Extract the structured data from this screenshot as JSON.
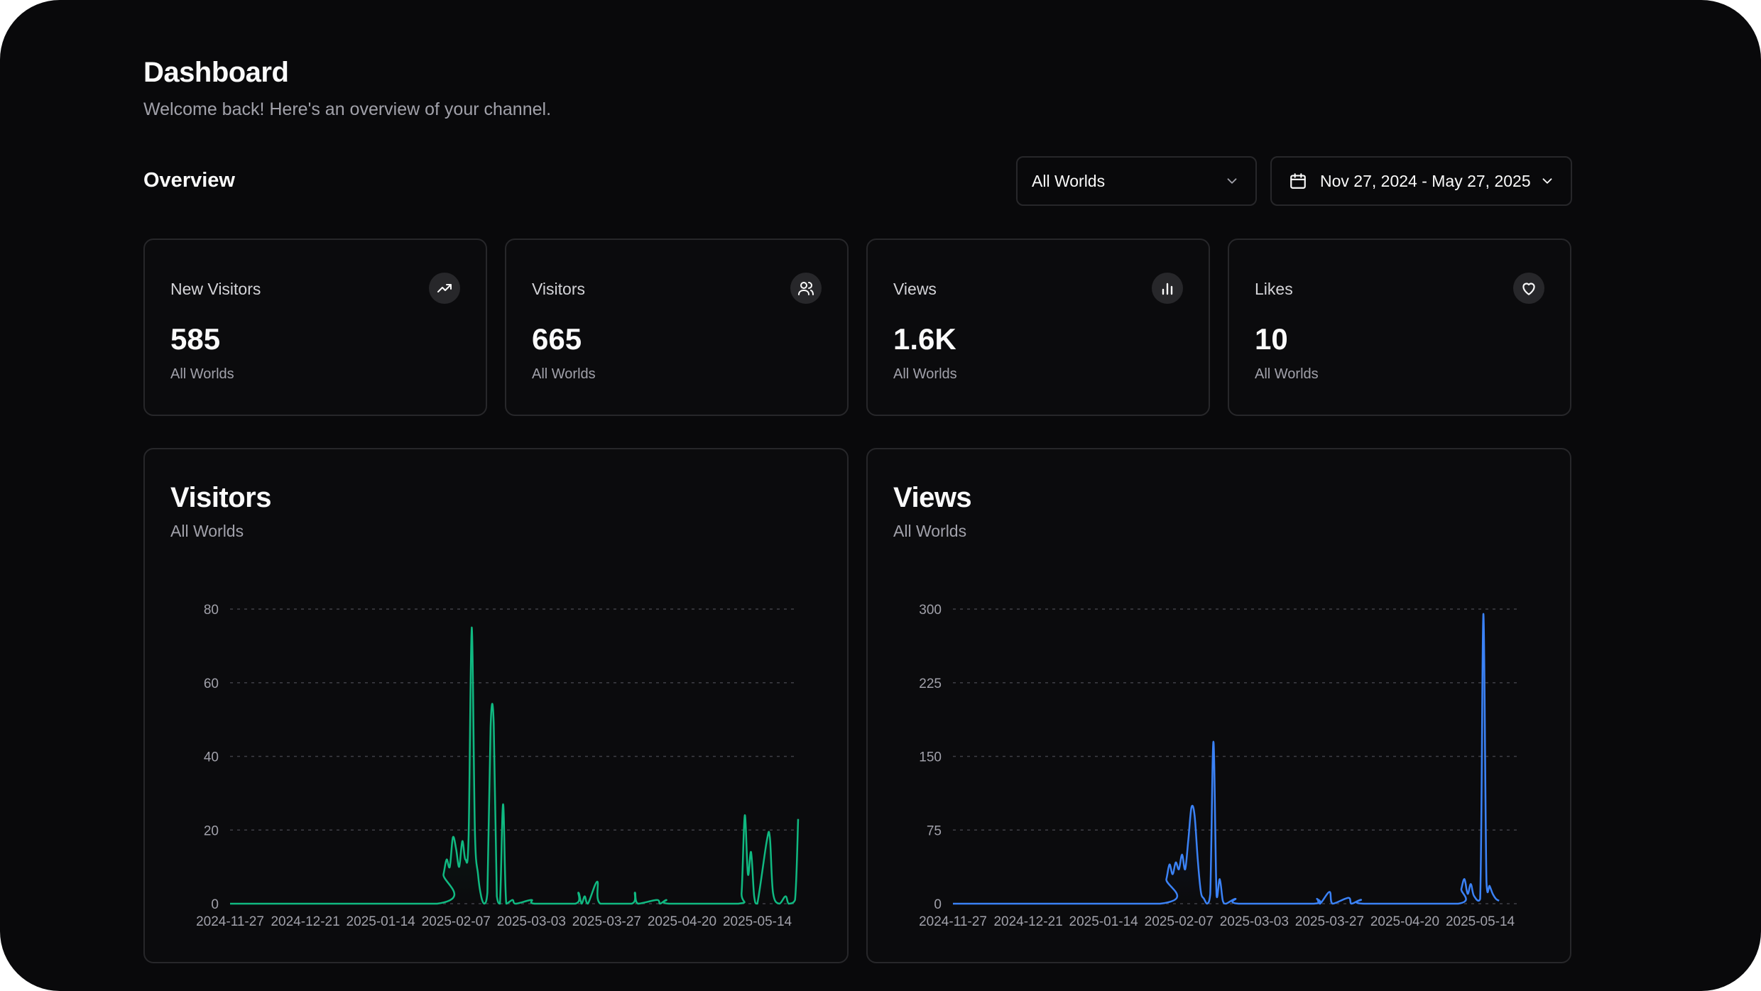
{
  "header": {
    "title": "Dashboard",
    "subtitle": "Welcome back! Here's an overview of your channel."
  },
  "overview": {
    "heading": "Overview",
    "world_filter": "All Worlds",
    "date_range": "Nov 27, 2024 - May 27, 2025"
  },
  "stats": [
    {
      "label": "New Visitors",
      "value": "585",
      "sub": "All Worlds",
      "icon": "trending-up-icon"
    },
    {
      "label": "Visitors",
      "value": "665",
      "sub": "All Worlds",
      "icon": "users-icon"
    },
    {
      "label": "Views",
      "value": "1.6K",
      "sub": "All Worlds",
      "icon": "bar-chart-icon"
    },
    {
      "label": "Likes",
      "value": "10",
      "sub": "All Worlds",
      "icon": "heart-icon"
    }
  ],
  "colors": {
    "background": "#09090b",
    "border": "#27272a",
    "visitors_line": "#10b981",
    "views_line": "#3b82f6"
  },
  "chart_data": [
    {
      "type": "line",
      "title": "Visitors",
      "subtitle": "All Worlds",
      "color": "#10b981",
      "ylim": [
        0,
        80
      ],
      "yticks": [
        0,
        20,
        40,
        60,
        80
      ],
      "x_tick_labels": [
        "2024-11-27",
        "2024-12-21",
        "2025-01-14",
        "2025-02-07",
        "2025-03-03",
        "2025-03-27",
        "2025-04-20",
        "2025-05-14"
      ],
      "x_range": [
        "2024-11-27",
        "2025-05-27"
      ],
      "grid": "horizontal dashed",
      "points": [
        [
          "2024-11-27",
          0
        ],
        [
          "2025-02-01",
          0
        ],
        [
          "2025-02-03",
          8
        ],
        [
          "2025-02-04",
          12
        ],
        [
          "2025-02-05",
          10
        ],
        [
          "2025-02-06",
          18
        ],
        [
          "2025-02-07",
          15
        ],
        [
          "2025-02-08",
          10
        ],
        [
          "2025-02-09",
          17
        ],
        [
          "2025-02-10",
          12
        ],
        [
          "2025-02-11",
          18
        ],
        [
          "2025-02-12",
          75
        ],
        [
          "2025-02-13",
          20
        ],
        [
          "2025-02-14",
          8
        ],
        [
          "2025-02-15",
          2
        ],
        [
          "2025-02-16",
          0
        ],
        [
          "2025-02-17",
          3
        ],
        [
          "2025-02-18",
          48
        ],
        [
          "2025-02-19",
          49
        ],
        [
          "2025-02-20",
          2
        ],
        [
          "2025-02-21",
          0
        ],
        [
          "2025-02-22",
          27
        ],
        [
          "2025-02-23",
          0
        ],
        [
          "2025-02-25",
          1
        ],
        [
          "2025-02-26",
          0
        ],
        [
          "2025-03-03",
          1
        ],
        [
          "2025-03-04",
          0
        ],
        [
          "2025-03-17",
          0
        ],
        [
          "2025-03-18",
          3
        ],
        [
          "2025-03-19",
          0
        ],
        [
          "2025-03-20",
          2
        ],
        [
          "2025-03-21",
          0
        ],
        [
          "2025-03-24",
          6
        ],
        [
          "2025-03-25",
          0
        ],
        [
          "2025-04-04",
          0
        ],
        [
          "2025-04-05",
          3
        ],
        [
          "2025-04-06",
          0
        ],
        [
          "2025-04-12",
          1
        ],
        [
          "2025-04-13",
          0
        ],
        [
          "2025-04-15",
          1
        ],
        [
          "2025-04-16",
          0
        ],
        [
          "2025-05-08",
          0
        ],
        [
          "2025-05-09",
          3
        ],
        [
          "2025-05-10",
          24
        ],
        [
          "2025-05-11",
          8
        ],
        [
          "2025-05-12",
          14
        ],
        [
          "2025-05-13",
          2
        ],
        [
          "2025-05-14",
          0
        ],
        [
          "2025-05-17",
          17
        ],
        [
          "2025-05-18",
          18
        ],
        [
          "2025-05-19",
          3
        ],
        [
          "2025-05-21",
          0
        ],
        [
          "2025-05-23",
          2
        ],
        [
          "2025-05-24",
          0
        ],
        [
          "2025-05-26",
          1
        ],
        [
          "2025-05-27",
          23
        ]
      ]
    },
    {
      "type": "line",
      "title": "Views",
      "subtitle": "All Worlds",
      "color": "#3b82f6",
      "ylim": [
        0,
        300
      ],
      "yticks": [
        0,
        75,
        150,
        225,
        300
      ],
      "x_tick_labels": [
        "2024-11-27",
        "2024-12-21",
        "2025-01-14",
        "2025-02-07",
        "2025-03-03",
        "2025-03-27",
        "2025-04-20",
        "2025-05-14"
      ],
      "x_range": [
        "2024-11-27",
        "2025-05-27"
      ],
      "grid": "horizontal dashed",
      "points": [
        [
          "2024-11-27",
          0
        ],
        [
          "2025-02-01",
          0
        ],
        [
          "2025-02-03",
          25
        ],
        [
          "2025-02-04",
          40
        ],
        [
          "2025-02-05",
          30
        ],
        [
          "2025-02-06",
          42
        ],
        [
          "2025-02-07",
          35
        ],
        [
          "2025-02-08",
          50
        ],
        [
          "2025-02-09",
          35
        ],
        [
          "2025-02-10",
          65
        ],
        [
          "2025-02-11",
          98
        ],
        [
          "2025-02-12",
          90
        ],
        [
          "2025-02-13",
          45
        ],
        [
          "2025-02-14",
          12
        ],
        [
          "2025-02-15",
          5
        ],
        [
          "2025-02-16",
          0
        ],
        [
          "2025-02-17",
          10
        ],
        [
          "2025-02-18",
          165
        ],
        [
          "2025-02-19",
          8
        ],
        [
          "2025-02-20",
          25
        ],
        [
          "2025-02-21",
          3
        ],
        [
          "2025-02-22",
          0
        ],
        [
          "2025-02-25",
          5
        ],
        [
          "2025-02-26",
          0
        ],
        [
          "2025-03-22",
          0
        ],
        [
          "2025-03-23",
          5
        ],
        [
          "2025-03-24",
          0
        ],
        [
          "2025-03-27",
          12
        ],
        [
          "2025-03-28",
          0
        ],
        [
          "2025-04-02",
          6
        ],
        [
          "2025-04-03",
          0
        ],
        [
          "2025-04-06",
          4
        ],
        [
          "2025-04-07",
          0
        ],
        [
          "2025-05-07",
          0
        ],
        [
          "2025-05-08",
          15
        ],
        [
          "2025-05-09",
          25
        ],
        [
          "2025-05-10",
          10
        ],
        [
          "2025-05-11",
          20
        ],
        [
          "2025-05-12",
          8
        ],
        [
          "2025-05-14",
          5
        ],
        [
          "2025-05-15",
          295
        ],
        [
          "2025-05-16",
          22
        ],
        [
          "2025-05-17",
          18
        ],
        [
          "2025-05-18",
          10
        ],
        [
          "2025-05-19",
          5
        ],
        [
          "2025-05-20",
          3
        ]
      ]
    }
  ]
}
